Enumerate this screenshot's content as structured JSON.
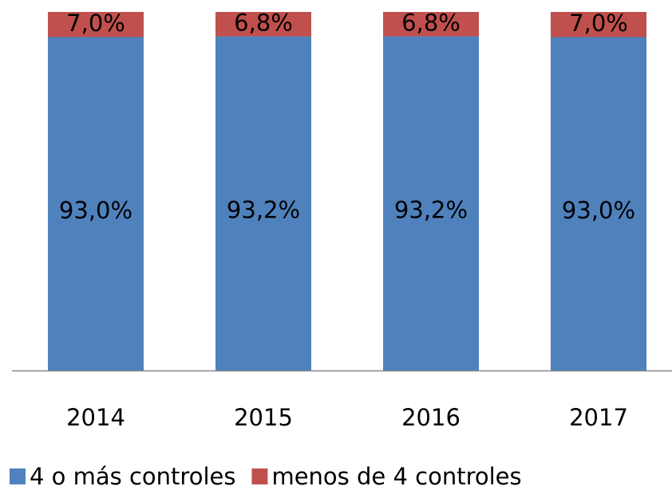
{
  "chart_data": {
    "type": "stacked_bar",
    "categories": [
      "2014",
      "2015",
      "2016",
      "2017"
    ],
    "series": [
      {
        "name": "4 o más controles",
        "color": "#4f81bd",
        "values": [
          93.0,
          93.2,
          93.2,
          93.0
        ],
        "value_labels": [
          "93,0%",
          "93,2%",
          "93,2%",
          "93,0%"
        ]
      },
      {
        "name": "menos de 4 controles",
        "color": "#c0504d",
        "values": [
          7.0,
          6.8,
          6.8,
          7.0
        ],
        "value_labels": [
          "7,0%",
          "6,8%",
          "6,8%",
          "7,0%"
        ]
      }
    ],
    "ylim": [
      0,
      100
    ],
    "legend": "bottom"
  }
}
